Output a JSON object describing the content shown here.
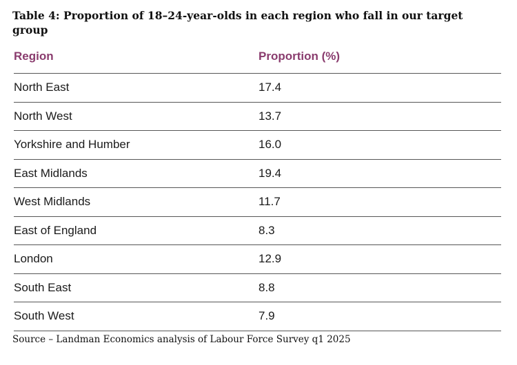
{
  "title": "Table 4: Proportion of 18–24-year-olds in each region who fall in our target group",
  "table": {
    "headers": {
      "region": "Region",
      "proportion": "Proportion (%)"
    },
    "rows": [
      {
        "region": "North East",
        "proportion": "17.4"
      },
      {
        "region": "North West",
        "proportion": "13.7"
      },
      {
        "region": "Yorkshire and Humber",
        "proportion": "16.0"
      },
      {
        "region": "East Midlands",
        "proportion": "19.4"
      },
      {
        "region": "West Midlands",
        "proportion": "11.7"
      },
      {
        "region": "East of England",
        "proportion": "8.3"
      },
      {
        "region": "London",
        "proportion": "12.9"
      },
      {
        "region": "South East",
        "proportion": "8.8"
      },
      {
        "region": "South West",
        "proportion": "7.9"
      }
    ]
  },
  "source": "Source – Landman Economics analysis of Labour Force Survey q1 2025",
  "colors": {
    "header_text": "#8a3c6e",
    "rule": "#555555"
  }
}
